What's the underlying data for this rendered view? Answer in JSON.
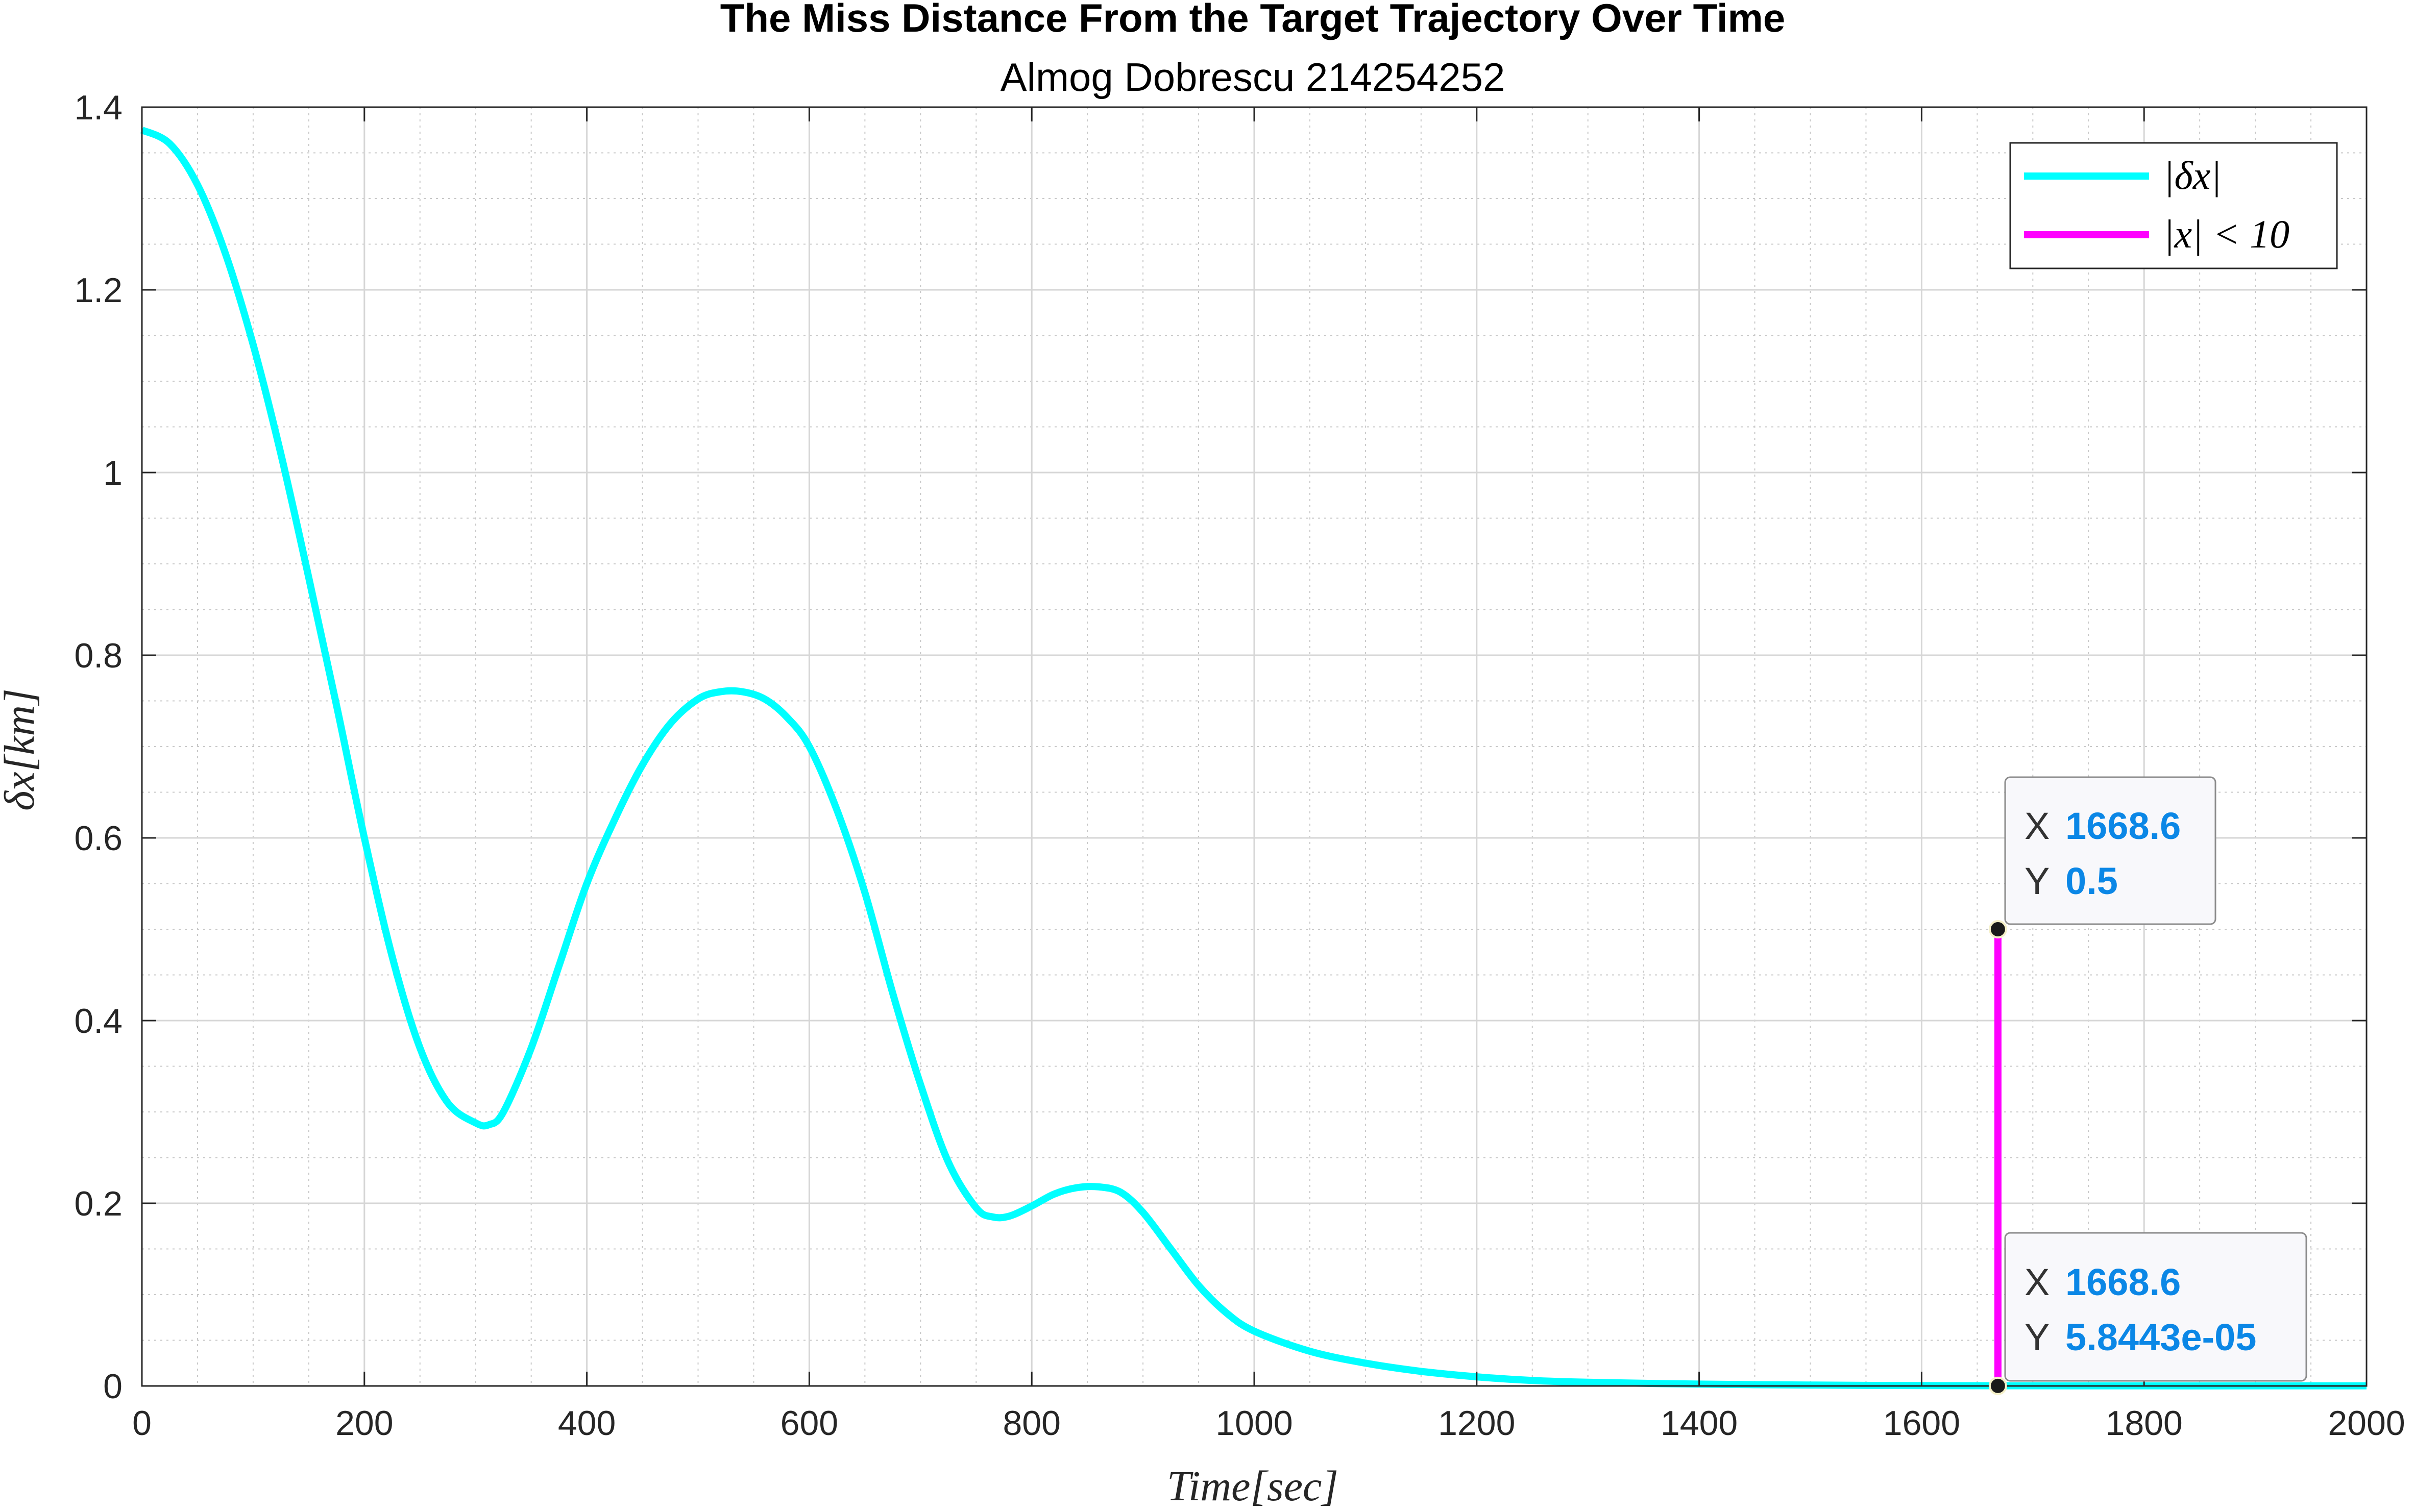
{
  "chart_data": {
    "type": "line",
    "title": "The Miss Distance From the Target Trajectory Over Time",
    "subtitle": "Almog Dobrescu 214254252",
    "xlabel": "Time[sec]",
    "ylabel": "δx[km]",
    "xlim": [
      0,
      2000
    ],
    "ylim": [
      0,
      1.4
    ],
    "x_ticks": [
      "0",
      "200",
      "400",
      "600",
      "800",
      "1000",
      "1200",
      "1400",
      "1600",
      "1800",
      "2000"
    ],
    "y_ticks": [
      "0",
      "0.2",
      "0.4",
      "0.6",
      "0.8",
      "1",
      "1.2",
      "1.4"
    ],
    "grid": true,
    "minor_grid": true,
    "legend_position": "top-right",
    "series": [
      {
        "name": "|δx|",
        "color": "#00ffff",
        "x": [
          0,
          25,
          50,
          75,
          100,
          125,
          150,
          175,
          200,
          225,
          250,
          275,
          300,
          312,
          325,
          350,
          375,
          400,
          425,
          450,
          475,
          500,
          520,
          540,
          560,
          580,
          600,
          625,
          650,
          675,
          700,
          725,
          750,
          765,
          780,
          800,
          820,
          840,
          860,
          880,
          900,
          925,
          950,
          975,
          1000,
          1050,
          1100,
          1150,
          1200,
          1250,
          1300,
          1400,
          1500,
          1600,
          1700,
          1800,
          1900,
          2000
        ],
        "y": [
          1.375,
          1.36,
          1.315,
          1.24,
          1.14,
          1.02,
          0.885,
          0.745,
          0.6,
          0.47,
          0.37,
          0.31,
          0.288,
          0.286,
          0.3,
          0.37,
          0.46,
          0.55,
          0.62,
          0.68,
          0.725,
          0.752,
          0.76,
          0.76,
          0.752,
          0.732,
          0.7,
          0.63,
          0.54,
          0.43,
          0.33,
          0.245,
          0.195,
          0.185,
          0.186,
          0.197,
          0.21,
          0.217,
          0.218,
          0.212,
          0.19,
          0.15,
          0.11,
          0.08,
          0.06,
          0.038,
          0.025,
          0.016,
          0.01,
          0.006,
          0.004,
          0.002,
          0.001,
          0.0004,
          0.0002,
          0.0001,
          0.0001,
          0.0001
        ]
      },
      {
        "name": "|x| < 10",
        "color": "#ff00ff",
        "x": [
          1668.6,
          1668.6
        ],
        "y": [
          0.5,
          5.84e-05
        ]
      }
    ],
    "datatips": [
      {
        "x_key": "X",
        "x_value": "1668.6",
        "y_key": "Y",
        "y_value": "0.5",
        "x": 1668.6,
        "y": 0.5
      },
      {
        "x_key": "X",
        "x_value": "1668.6",
        "y_key": "Y",
        "y_value": "5.8443e-05",
        "x": 1668.6,
        "y": 5.84e-05
      }
    ]
  }
}
